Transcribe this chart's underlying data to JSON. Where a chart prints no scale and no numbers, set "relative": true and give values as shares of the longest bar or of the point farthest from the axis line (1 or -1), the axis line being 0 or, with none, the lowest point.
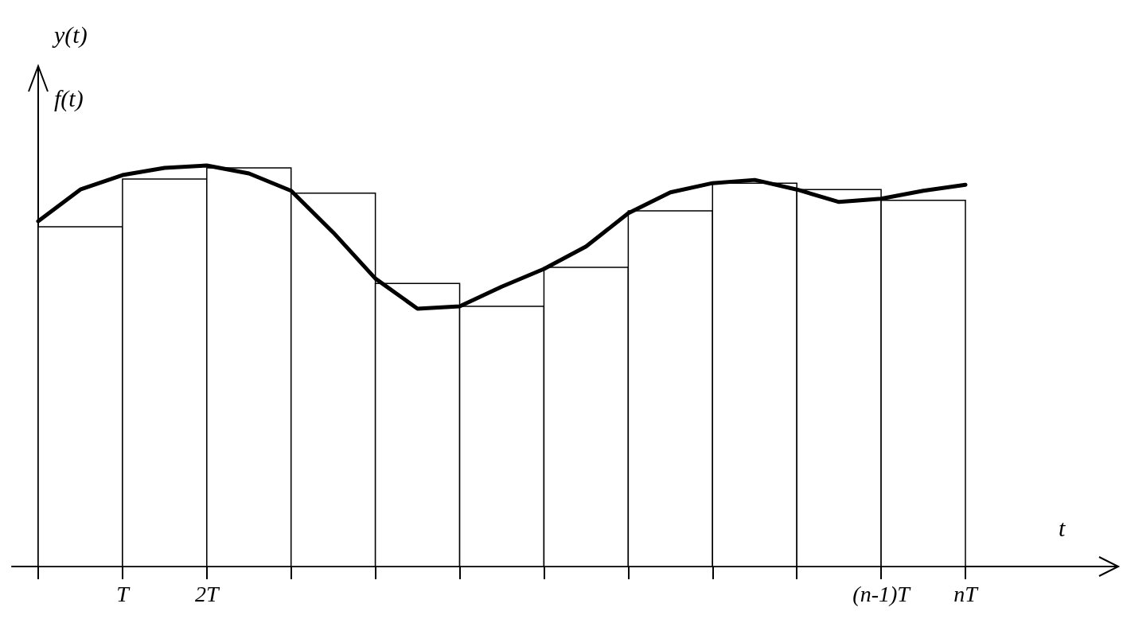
{
  "chart_data": {
    "type": "bar",
    "relative": true,
    "xlabel": "t",
    "ylabel": "y(t)",
    "annotations": [
      "f(t)"
    ],
    "marker": "none",
    "categories": [
      null,
      null,
      "T",
      null,
      "2T",
      null,
      null,
      null,
      null,
      null,
      null,
      null,
      null,
      null,
      null,
      null,
      null,
      null,
      null,
      null,
      "(n-1)T",
      null,
      "nT"
    ],
    "series": [
      {
        "color": "#ffffff",
        "values": [
          null,
          0.847,
          null,
          0.966,
          null,
          0.994,
          null,
          0.931,
          null,
          0.706,
          null,
          0.649,
          null,
          0.746,
          null,
          0.887,
          null,
          0.956,
          null,
          0.94,
          null,
          0.913,
          null
        ]
      },
      {
        "type": "line",
        "color": "#000000",
        "values": [
          0.861,
          0.94,
          0.976,
          0.994,
          1.0,
          0.98,
          0.937,
          0.833,
          0.718,
          0.643,
          0.649,
          0.698,
          0.742,
          0.798,
          0.881,
          0.933,
          0.956,
          0.964,
          0.94,
          0.909,
          0.917,
          0.937,
          0.952
        ]
      }
    ]
  }
}
